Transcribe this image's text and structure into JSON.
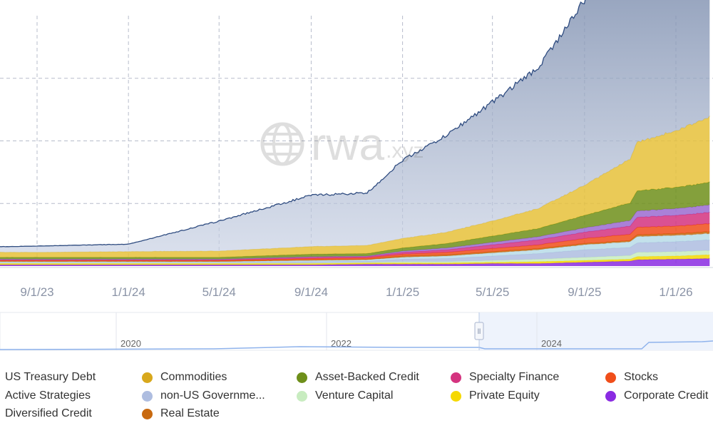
{
  "watermark": {
    "brand": "rwa",
    "domain": ".xyz"
  },
  "chart_data": {
    "type": "area",
    "stacked": true,
    "grid": true,
    "x_ticks": [
      "9/1/23",
      "1/1/24",
      "5/1/24",
      "9/1/24",
      "1/1/25",
      "5/1/25",
      "9/1/25",
      "1/1/26"
    ],
    "dates": [
      "2023-06-01",
      "2023-09-01",
      "2024-01-01",
      "2024-05-01",
      "2024-09-01",
      "2024-11-15",
      "2025-01-01",
      "2025-03-01",
      "2025-05-01",
      "2025-07-01",
      "2025-09-01",
      "2025-11-01",
      "2025-11-10",
      "2026-01-01",
      "2026-02-15"
    ],
    "series": [
      {
        "name": "Corporate Credit",
        "color": "#8a2be2",
        "values": [
          0.02,
          0.02,
          0.02,
          0.02,
          0.02,
          0.03,
          0.03,
          0.03,
          0.04,
          0.04,
          0.06,
          0.08,
          0.1,
          0.11,
          0.12
        ]
      },
      {
        "name": "Private Equity",
        "color": "#f5d800",
        "values": [
          0.02,
          0.02,
          0.02,
          0.02,
          0.02,
          0.02,
          0.02,
          0.02,
          0.02,
          0.03,
          0.03,
          0.03,
          0.05,
          0.05,
          0.06
        ]
      },
      {
        "name": "Venture Capital",
        "color": "#c8ecc0",
        "values": [
          0.01,
          0.01,
          0.01,
          0.01,
          0.01,
          0.01,
          0.02,
          0.02,
          0.03,
          0.04,
          0.05,
          0.06,
          0.07,
          0.07,
          0.07
        ]
      },
      {
        "name": "non-US Government Debt",
        "color": "#aebde0",
        "values": [
          0.01,
          0.01,
          0.01,
          0.01,
          0.02,
          0.02,
          0.04,
          0.05,
          0.07,
          0.09,
          0.12,
          0.13,
          0.15,
          0.16,
          0.17
        ]
      },
      {
        "name": "Active Strategies",
        "color": "#b8dce8",
        "values": [
          0.01,
          0.01,
          0.01,
          0.01,
          0.02,
          0.02,
          0.03,
          0.04,
          0.05,
          0.06,
          0.08,
          0.09,
          0.1,
          0.1,
          0.1
        ]
      },
      {
        "name": "Real Estate",
        "color": "#c8690f",
        "values": [
          0.01,
          0.01,
          0.01,
          0.01,
          0.01,
          0.01,
          0.02,
          0.02,
          0.02,
          0.02,
          0.02,
          0.02,
          0.03,
          0.03,
          0.03
        ]
      },
      {
        "name": "Stocks",
        "color": "#f04e1a",
        "values": [
          0.01,
          0.01,
          0.01,
          0.01,
          0.02,
          0.02,
          0.03,
          0.04,
          0.05,
          0.06,
          0.08,
          0.1,
          0.12,
          0.12,
          0.13
        ]
      },
      {
        "name": "Specialty Finance",
        "color": "#d4337f",
        "values": [
          0.01,
          0.01,
          0.01,
          0.01,
          0.02,
          0.02,
          0.03,
          0.04,
          0.06,
          0.08,
          0.1,
          0.13,
          0.16,
          0.17,
          0.18
        ]
      },
      {
        "name": "Diversified Credit",
        "color": "#9b6bd0",
        "values": [
          0.01,
          0.01,
          0.01,
          0.01,
          0.01,
          0.01,
          0.02,
          0.03,
          0.04,
          0.05,
          0.07,
          0.09,
          0.1,
          0.11,
          0.12
        ]
      },
      {
        "name": "Asset-Backed Credit",
        "color": "#6e8f1a",
        "values": [
          0.03,
          0.03,
          0.03,
          0.03,
          0.04,
          0.04,
          0.05,
          0.07,
          0.1,
          0.13,
          0.2,
          0.28,
          0.32,
          0.34,
          0.36
        ]
      },
      {
        "name": "Commodities",
        "color": "#e6c13a",
        "values": [
          0.08,
          0.08,
          0.09,
          0.1,
          0.12,
          0.13,
          0.15,
          0.18,
          0.24,
          0.32,
          0.48,
          0.7,
          0.78,
          0.9,
          1.05
        ]
      },
      {
        "name": "US Treasury Debt",
        "color": "#5d7399",
        "values": [
          0.08,
          0.1,
          0.12,
          0.48,
          0.82,
          0.84,
          1.25,
          1.55,
          1.9,
          2.25,
          2.95,
          3.4,
          3.55,
          3.7,
          3.95
        ]
      }
    ]
  },
  "navigator": {
    "labels": [
      "2020",
      "2022",
      "2024"
    ],
    "handle_glyph": "ll"
  },
  "legend": {
    "items": [
      {
        "label": "US Treasury Debt",
        "color": "#4a6490"
      },
      {
        "label": "Commodities",
        "color": "#d8a81c"
      },
      {
        "label": "Asset-Backed Credit",
        "color": "#6e8f1a"
      },
      {
        "label": "Specialty Finance",
        "color": "#d4337f"
      },
      {
        "label": "Stocks",
        "color": "#f04e1a"
      },
      {
        "label": "Active Strategies",
        "color": "#9dd1e3"
      },
      {
        "label": "non-US Governme...",
        "color": "#aebde0"
      },
      {
        "label": "Venture Capital",
        "color": "#c8ecc0"
      },
      {
        "label": "Private Equity",
        "color": "#f5d800"
      },
      {
        "label": "Corporate Credit",
        "color": "#8a2be2"
      },
      {
        "label": "Diversified Credit",
        "color": "#9b6bd0"
      },
      {
        "label": "Real Estate",
        "color": "#c8690f"
      }
    ]
  }
}
